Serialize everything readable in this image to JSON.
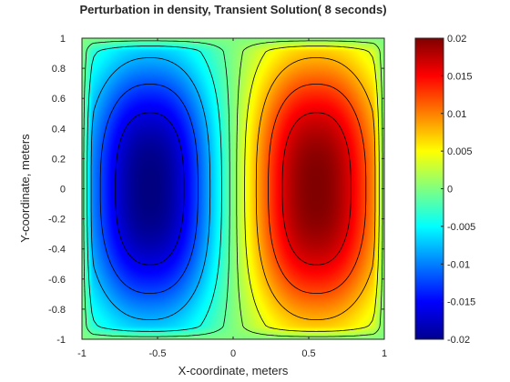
{
  "chart_data": {
    "type": "heatmap",
    "title": "Perturbation in density, Transient Solution( 8 seconds)",
    "xlabel": "X-coordinate, meters",
    "ylabel": "Y-coordinate, meters",
    "xlim": [
      -1,
      1
    ],
    "ylim": [
      -1,
      1
    ],
    "xticks": [
      "-1",
      "-0.5",
      "0",
      "0.5",
      "1"
    ],
    "xtick_values": [
      -1,
      -0.5,
      0,
      0.5,
      1
    ],
    "yticks": [
      "1",
      "0.8",
      "0.6",
      "0.4",
      "0.2",
      "0",
      "-0.2",
      "-0.4",
      "-0.6",
      "-0.8",
      "-1"
    ],
    "ytick_values": [
      1,
      0.8,
      0.6,
      0.4,
      0.2,
      0,
      -0.2,
      -0.4,
      -0.6,
      -0.8,
      -1
    ],
    "colorbar": {
      "colormap": "jet",
      "clim": [
        -0.02,
        0.02
      ],
      "ticks": [
        "0.02",
        "0.015",
        "0.01",
        "0.005",
        "0",
        "-0.005",
        "-0.01",
        "-0.015",
        "-0.02"
      ],
      "tick_values": [
        0.02,
        0.015,
        0.01,
        0.005,
        0,
        -0.005,
        -0.01,
        -0.015,
        -0.02
      ]
    },
    "field": {
      "description": "two-lobe density perturbation",
      "lobes": [
        {
          "sign": "negative",
          "center_x": -0.55,
          "center_y": 0.0,
          "peak": -0.02
        },
        {
          "sign": "positive",
          "center_x": 0.55,
          "center_y": 0.0,
          "peak": 0.02
        }
      ],
      "contour_levels": [
        -0.016,
        -0.012,
        -0.008,
        -0.004,
        -0.0012,
        0.0012,
        0.004,
        0.008,
        0.012,
        0.016
      ]
    },
    "grid": false,
    "legend": "colorbar-right"
  }
}
